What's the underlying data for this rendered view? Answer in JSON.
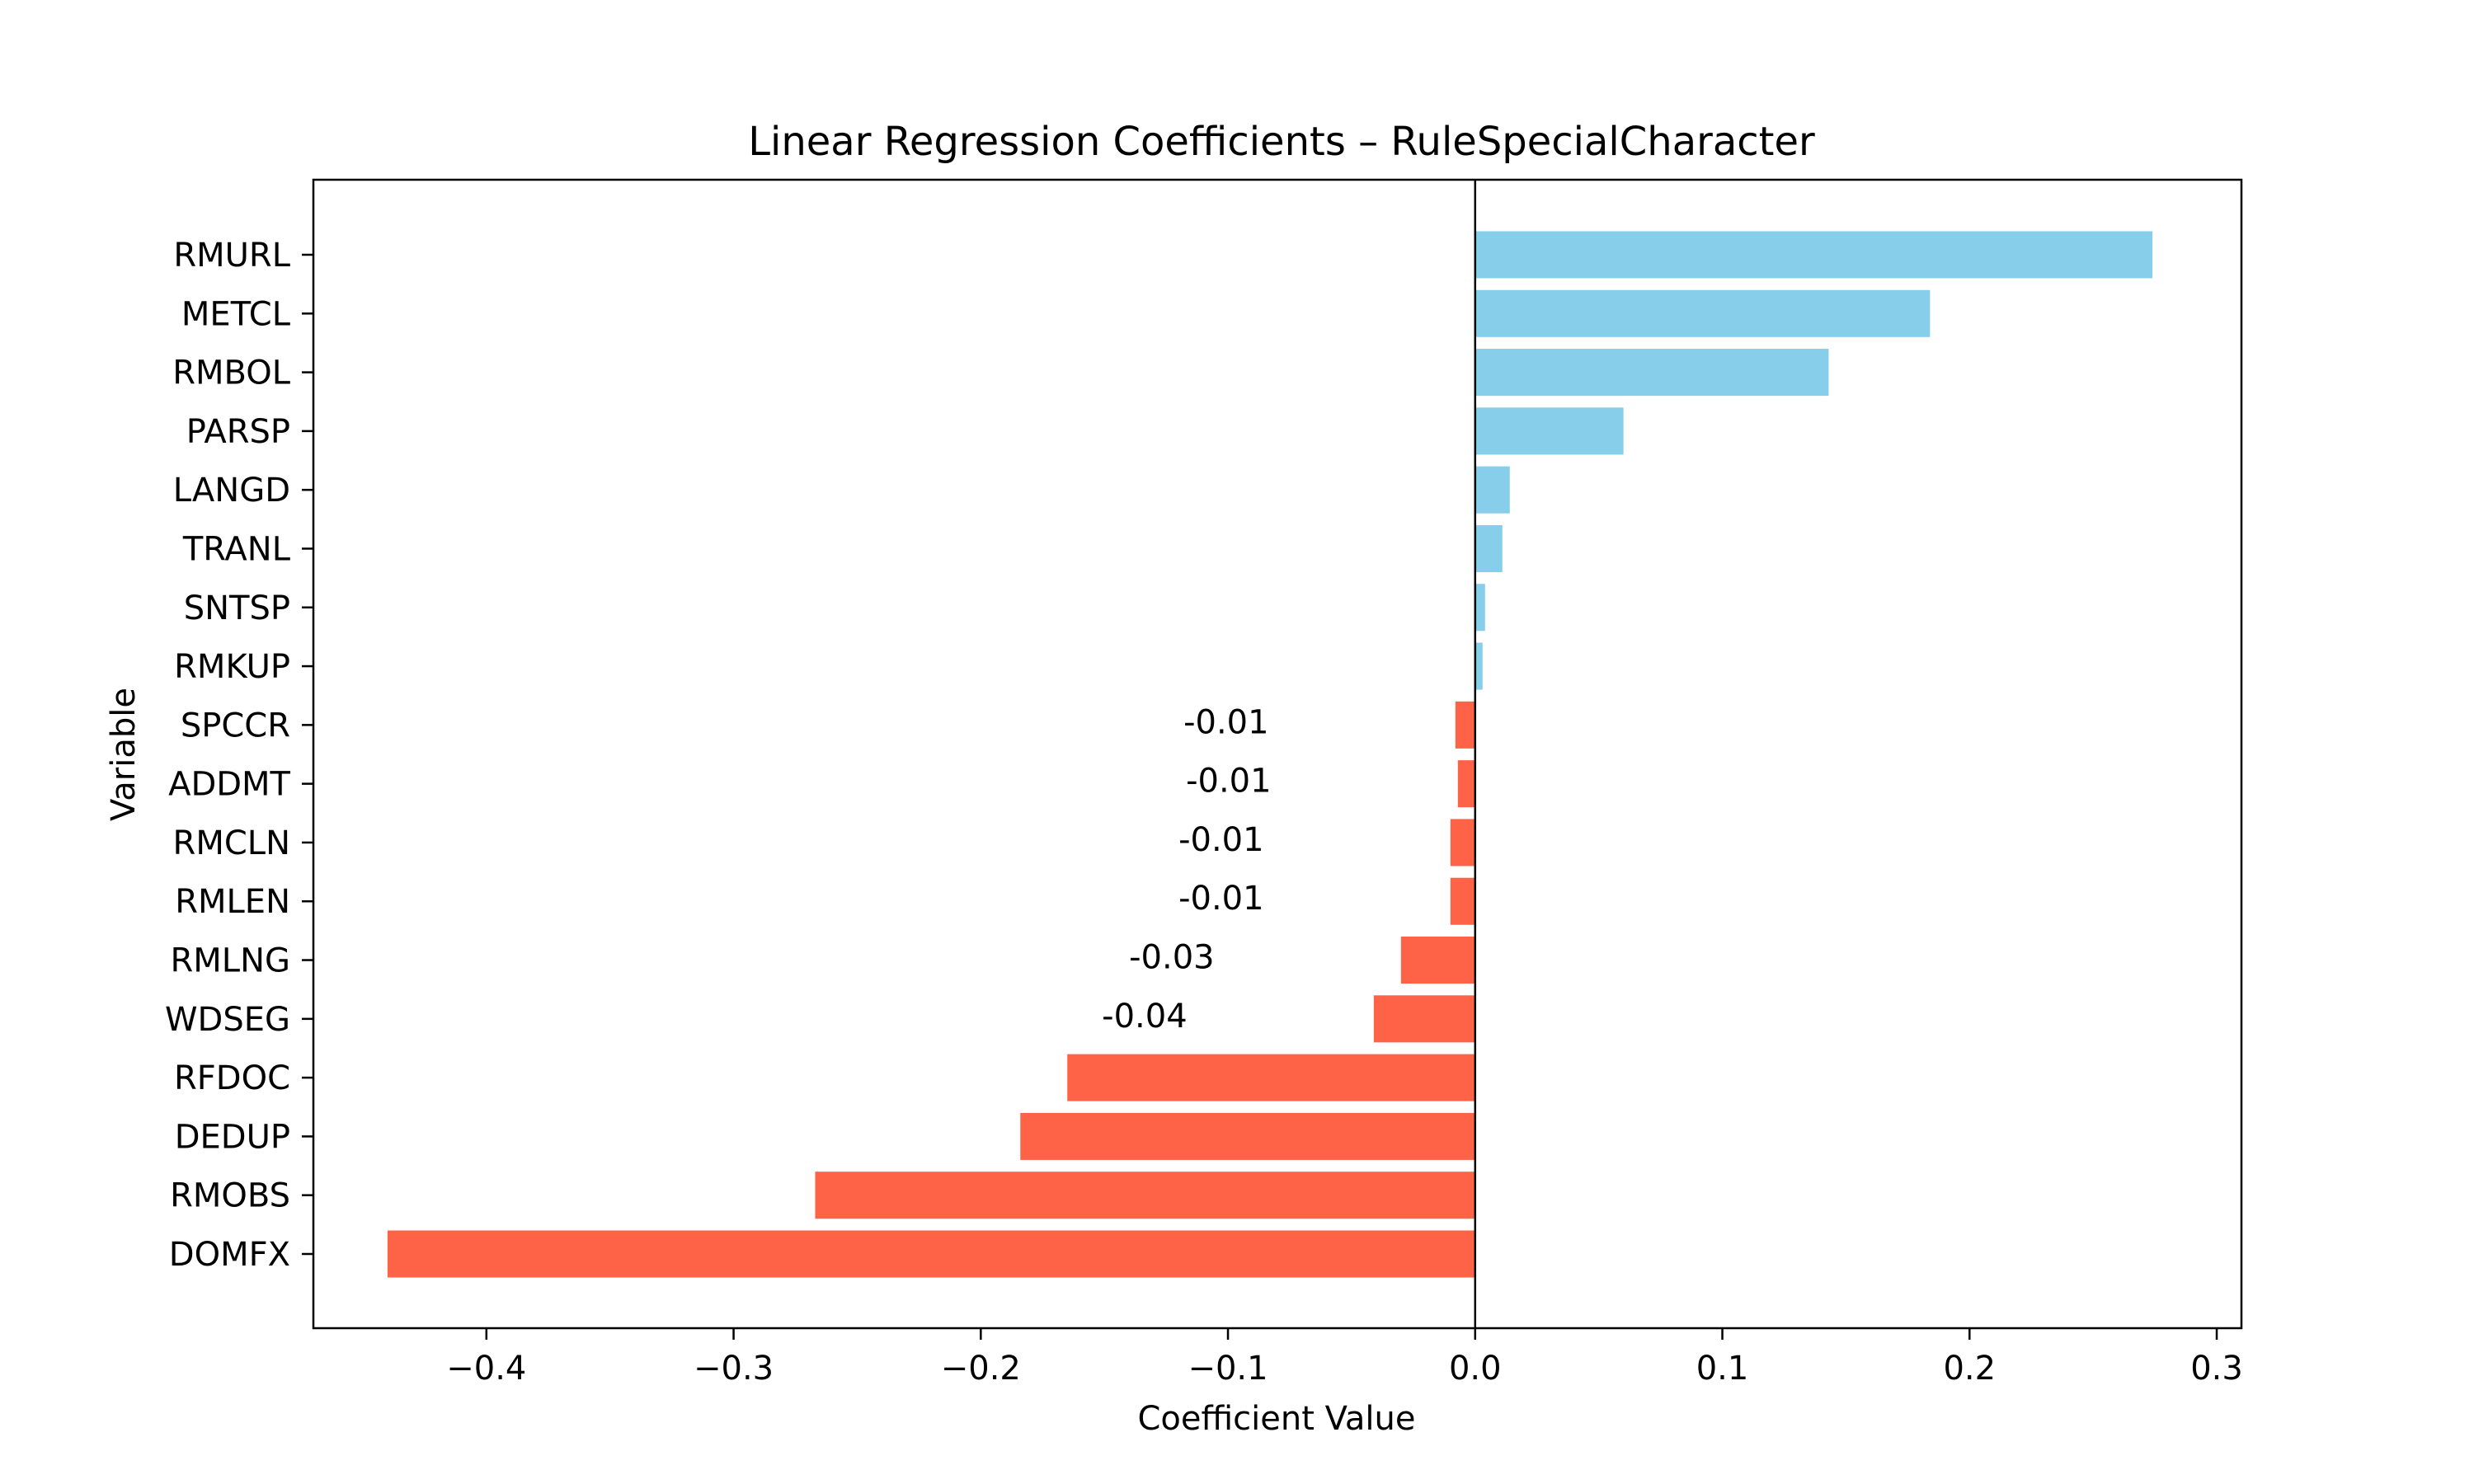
{
  "chart_data": {
    "type": "bar",
    "orientation": "horizontal",
    "title": "Linear Regression Coefficients – RuleSpecialCharacter",
    "xlabel": "Coefficient Value",
    "ylabel": "Variable",
    "xlim": [
      -0.47,
      0.31
    ],
    "x_ticks": [
      -0.4,
      -0.3,
      -0.2,
      -0.1,
      0.0,
      0.1,
      0.2,
      0.3
    ],
    "x_tick_labels": [
      "−0.4",
      "−0.3",
      "−0.2",
      "−0.1",
      "0.0",
      "0.1",
      "0.2",
      "0.3"
    ],
    "grid": false,
    "legend": false,
    "zero_line": true,
    "colors": {
      "positive": "#87CEEB",
      "negative": "#FF6347",
      "axis": "#000000"
    },
    "categories": [
      "RMURL",
      "METCL",
      "RMBOL",
      "PARSP",
      "LANGD",
      "TRANL",
      "SNTSP",
      "RMKUP",
      "SPCCR",
      "ADDMT",
      "RMCLN",
      "RMLEN",
      "RMLNG",
      "WDSEG",
      "RFDOC",
      "DEDUP",
      "RMOBS",
      "DOMFX"
    ],
    "values": [
      0.274,
      0.184,
      0.143,
      0.06,
      0.014,
      0.011,
      0.004,
      0.003,
      -0.008,
      -0.007,
      -0.01,
      -0.01,
      -0.03,
      -0.041,
      -0.165,
      -0.184,
      -0.267,
      -0.44
    ],
    "data_labels": [
      "",
      "",
      "",
      "",
      "",
      "",
      "",
      "",
      "-0.01",
      "-0.01",
      "-0.01",
      "-0.01",
      "-0.03",
      "-0.04",
      "",
      "",
      "",
      ""
    ]
  }
}
